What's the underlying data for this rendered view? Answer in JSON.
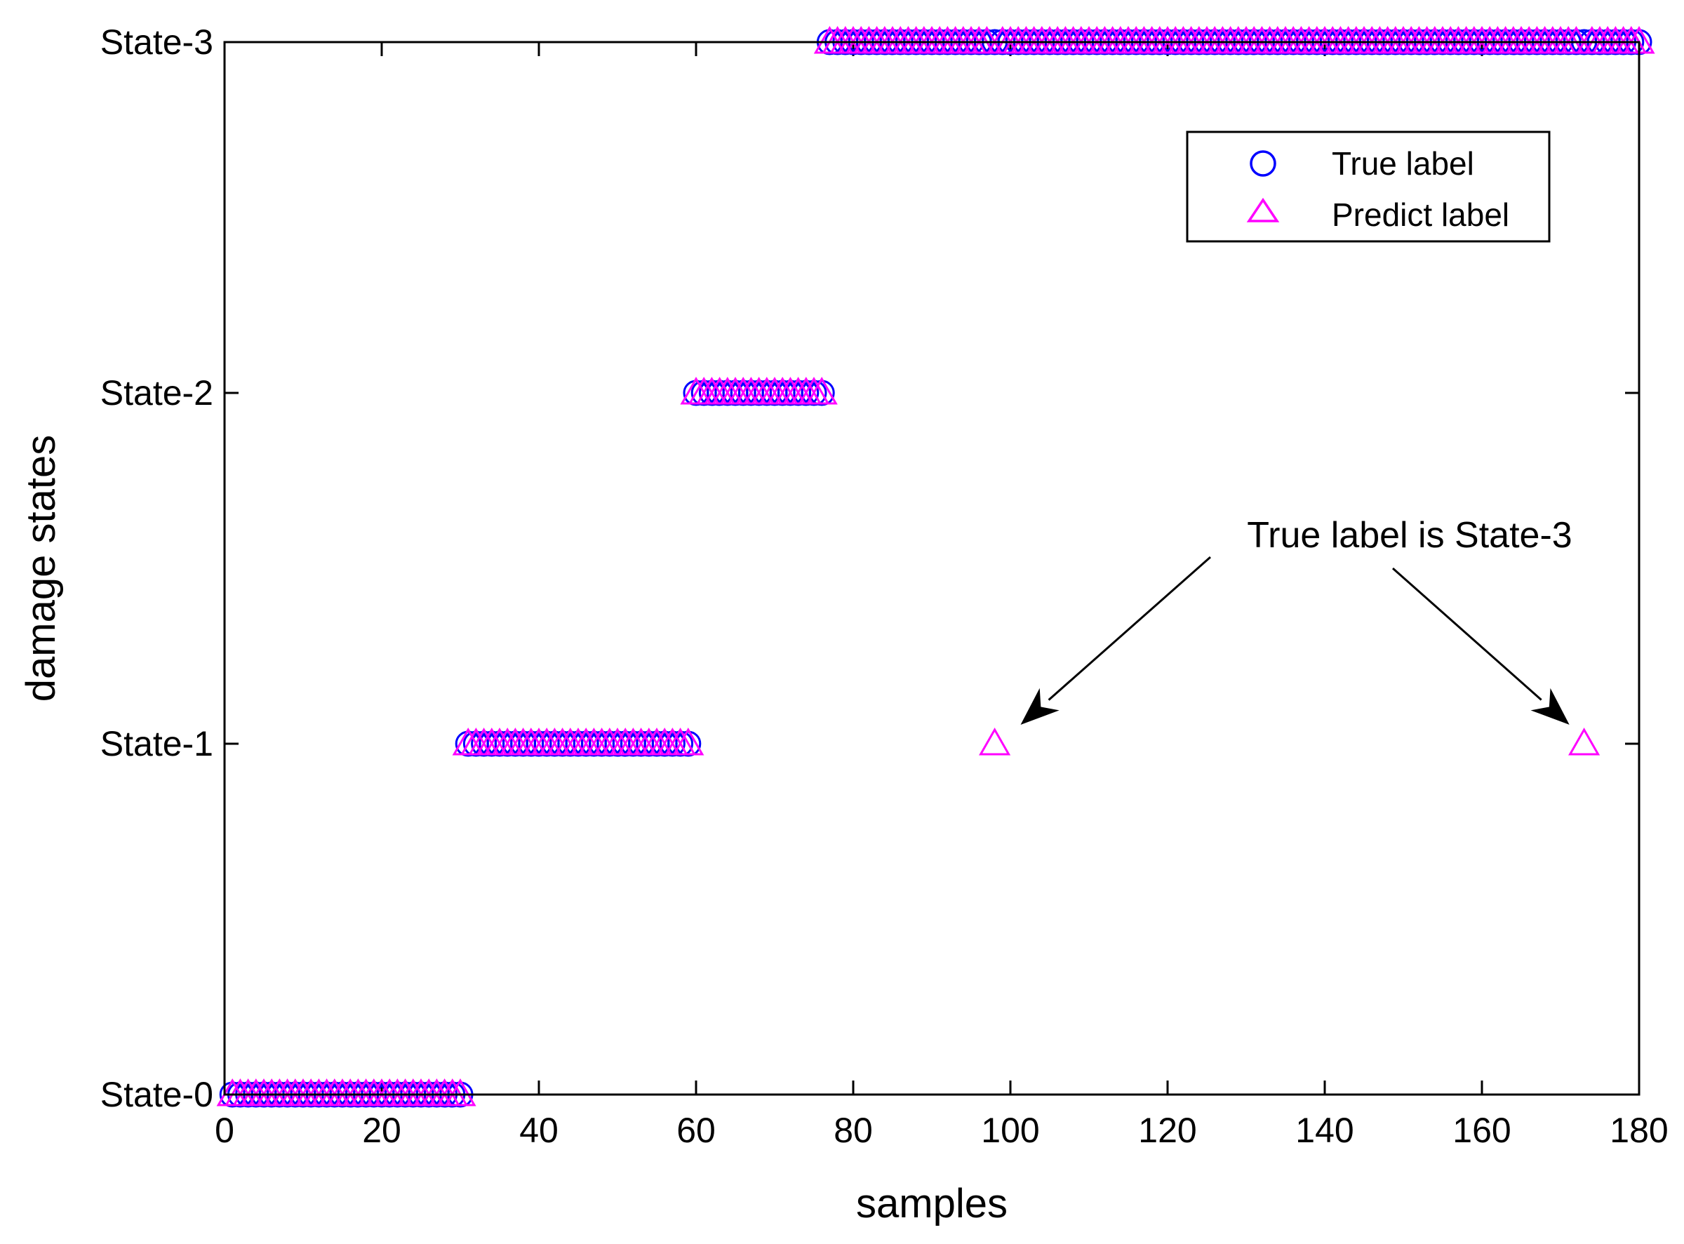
{
  "chart_data": {
    "type": "scatter",
    "title": "",
    "xlabel": "samples",
    "ylabel": "damage states",
    "xlim": [
      0,
      180
    ],
    "ylim": [
      0,
      3
    ],
    "xticks": [
      0,
      20,
      40,
      60,
      80,
      100,
      120,
      140,
      160,
      180
    ],
    "yticks": [
      {
        "value": 0,
        "label": "State-0"
      },
      {
        "value": 1,
        "label": "State-1"
      },
      {
        "value": 2,
        "label": "State-2"
      },
      {
        "value": 3,
        "label": "State-3"
      }
    ],
    "grid": false,
    "legend_position": "top-right",
    "series": [
      {
        "name": "True label",
        "marker": "circle",
        "color": "#0000ff",
        "segments": [
          {
            "x_from": 1,
            "x_to": 30,
            "y": 0
          },
          {
            "x_from": 31,
            "x_to": 59,
            "y": 1
          },
          {
            "x_from": 60,
            "x_to": 76,
            "y": 2
          },
          {
            "x_from": 77,
            "x_to": 180,
            "y": 3
          }
        ]
      },
      {
        "name": "Predict label",
        "marker": "triangle",
        "color": "#ff00ff",
        "segments": [
          {
            "x_from": 1,
            "x_to": 30,
            "y": 0
          },
          {
            "x_from": 31,
            "x_to": 59,
            "y": 1
          },
          {
            "x_from": 60,
            "x_to": 76,
            "y": 2
          },
          {
            "x_from": 77,
            "x_to": 97,
            "y": 3
          },
          {
            "x_from": 98,
            "x_to": 98,
            "y": 1
          },
          {
            "x_from": 99,
            "x_to": 172,
            "y": 3
          },
          {
            "x_from": 173,
            "x_to": 173,
            "y": 1
          },
          {
            "x_from": 174,
            "x_to": 180,
            "y": 3
          }
        ]
      }
    ],
    "annotation": {
      "text": "True label is State-3",
      "targets": [
        {
          "x": 98,
          "y": 1
        },
        {
          "x": 173,
          "y": 1
        }
      ]
    }
  }
}
